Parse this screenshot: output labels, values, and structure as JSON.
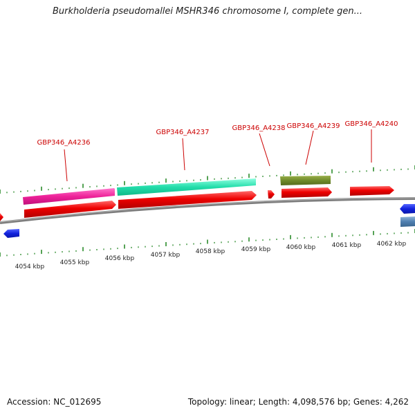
{
  "title": "Burkholderia pseudomallei MSHR346 chromosome I, complete gen...",
  "footer": {
    "accession": "Accession: NC_012695",
    "summary": "Topology: linear; Length: 4,098,576 bp; Genes: 4,262"
  },
  "axis_labels": [
    {
      "text": "4054 kbp"
    },
    {
      "text": "4055 kbp"
    },
    {
      "text": "4056 kbp"
    },
    {
      "text": "4057 kbp"
    },
    {
      "text": "4058 kbp"
    },
    {
      "text": "4059 kbp"
    },
    {
      "text": "4060 kbp"
    },
    {
      "text": "4061 kbp"
    },
    {
      "text": "4062 kbp"
    }
  ],
  "gene_labels": [
    {
      "text": "GBP346_A4236"
    },
    {
      "text": "GBP346_A4237"
    },
    {
      "text": "GBP346_A4238"
    },
    {
      "text": "GBP346_A4239"
    },
    {
      "text": "GBP346_A4240"
    }
  ],
  "colors": {
    "backbone": "#8a8a8a",
    "tick": "#2a8a2a",
    "label": "#cc0000",
    "cds_red": "#ee0000",
    "gene_pink": "#ee2299",
    "gene_cyan": "#22ddaa",
    "gene_olive": "#6f8a2a",
    "gene_blue": "#1122dd",
    "gene_steel": "#4f7fb0"
  }
}
